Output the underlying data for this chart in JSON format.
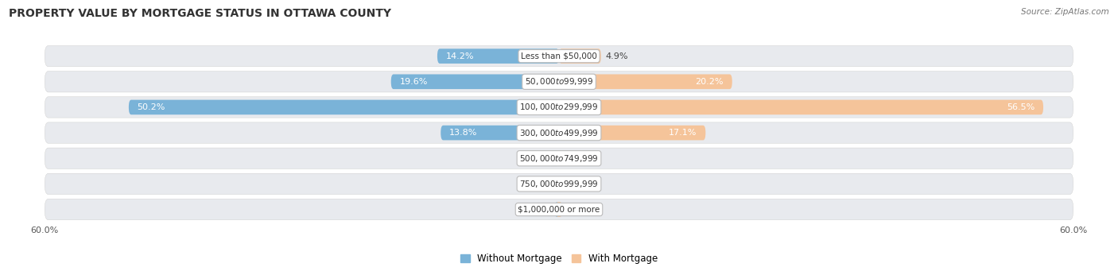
{
  "title": "PROPERTY VALUE BY MORTGAGE STATUS IN OTTAWA COUNTY",
  "source": "Source: ZipAtlas.com",
  "categories": [
    "Less than $50,000",
    "$50,000 to $99,999",
    "$100,000 to $299,999",
    "$300,000 to $499,999",
    "$500,000 to $749,999",
    "$750,000 to $999,999",
    "$1,000,000 or more"
  ],
  "without_mortgage": [
    14.2,
    19.6,
    50.2,
    13.8,
    1.1,
    0.63,
    0.52
  ],
  "with_mortgage": [
    4.9,
    20.2,
    56.5,
    17.1,
    0.56,
    0.79,
    0.0
  ],
  "axis_max": 60.0,
  "bar_color_left": "#7ab3d8",
  "bar_color_right": "#f5c49a",
  "row_bg_color": "#e8eaee",
  "label_color_dark": "#444444",
  "label_color_white": "#ffffff",
  "title_fontsize": 10,
  "category_fontsize": 7.5,
  "value_fontsize": 8,
  "legend_fontsize": 8.5,
  "axis_label_fontsize": 8,
  "threshold_white_label": 8.0
}
